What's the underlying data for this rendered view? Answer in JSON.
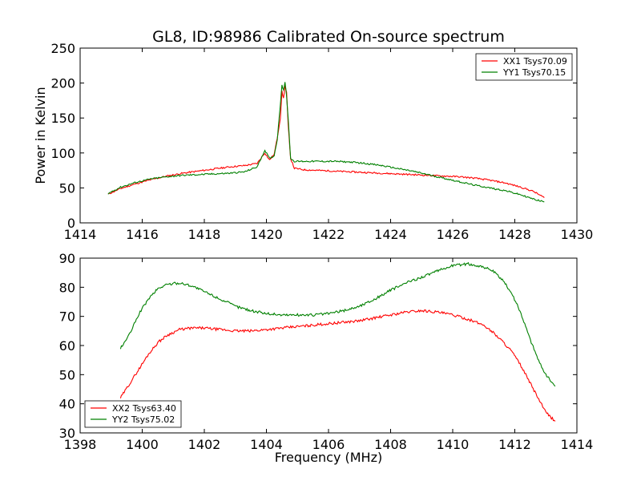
{
  "title": "GL8, ID:98986 Calibrated On-source spectrum",
  "ylabel": "Power in Kelvin",
  "xlabel": "Frequency (MHz)",
  "chart_data": [
    {
      "type": "line",
      "xlim": [
        1414,
        1430
      ],
      "ylim": [
        0,
        250
      ],
      "xticks": [
        "1414",
        "1416",
        "1418",
        "1420",
        "1422",
        "1424",
        "1426",
        "1428",
        "1430"
      ],
      "yticks": [
        "0",
        "50",
        "100",
        "150",
        "200",
        "250"
      ],
      "legend_position": "top-right",
      "series": [
        {
          "name": "XX1 Tsys70.09",
          "color": "#ff0000",
          "x": [
            1414.9,
            1415.3,
            1415.8,
            1416.3,
            1416.8,
            1417.3,
            1417.8,
            1418.3,
            1418.8,
            1419.3,
            1419.7,
            1419.95,
            1420.1,
            1420.25,
            1420.35,
            1420.45,
            1420.5,
            1420.55,
            1420.6,
            1420.65,
            1420.7,
            1420.78,
            1420.9,
            1421.2,
            1421.7,
            1422.2,
            1422.7,
            1423.2,
            1423.7,
            1424.2,
            1424.7,
            1425.2,
            1425.7,
            1426.2,
            1426.7,
            1427.2,
            1427.7,
            1428.2,
            1428.6,
            1428.95
          ],
          "y": [
            41,
            49,
            56,
            62,
            67,
            71,
            74,
            77,
            80,
            82,
            85,
            100,
            90,
            98,
            122,
            150,
            188,
            178,
            196,
            186,
            140,
            92,
            78,
            76,
            75,
            74,
            73,
            72,
            71,
            70,
            69,
            68,
            67,
            66,
            64,
            61,
            57,
            51,
            45,
            36
          ]
        },
        {
          "name": "YY1 Tsys70.15",
          "color": "#008000",
          "x": [
            1414.9,
            1415.3,
            1415.8,
            1416.3,
            1416.8,
            1417.3,
            1417.8,
            1418.3,
            1418.8,
            1419.3,
            1419.7,
            1419.95,
            1420.1,
            1420.25,
            1420.35,
            1420.45,
            1420.5,
            1420.55,
            1420.6,
            1420.65,
            1420.7,
            1420.78,
            1420.9,
            1421.2,
            1421.7,
            1422.2,
            1422.7,
            1423.2,
            1423.7,
            1424.2,
            1424.7,
            1425.2,
            1425.7,
            1426.2,
            1426.7,
            1427.2,
            1427.7,
            1428.2,
            1428.6,
            1428.95
          ],
          "y": [
            42,
            51,
            58,
            63,
            66,
            68,
            69,
            70,
            71,
            73,
            80,
            104,
            92,
            96,
            120,
            170,
            198,
            190,
            202,
            180,
            150,
            92,
            88,
            88,
            88,
            88,
            87,
            85,
            82,
            78,
            74,
            69,
            64,
            59,
            54,
            50,
            46,
            40,
            34,
            30
          ]
        }
      ]
    },
    {
      "type": "line",
      "xlim": [
        1398,
        1414
      ],
      "ylim": [
        30,
        90
      ],
      "xticks": [
        "1398",
        "1400",
        "1402",
        "1404",
        "1406",
        "1408",
        "1410",
        "1412",
        "1414"
      ],
      "yticks": [
        "30",
        "40",
        "50",
        "60",
        "70",
        "80",
        "90"
      ],
      "legend_position": "bottom-left",
      "series": [
        {
          "name": "XX2 Tsys63.40",
          "color": "#ff0000",
          "x": [
            1399.3,
            1399.6,
            1399.9,
            1400.2,
            1400.5,
            1400.8,
            1401.2,
            1401.6,
            1402.0,
            1402.5,
            1403.0,
            1403.5,
            1404.0,
            1404.5,
            1405.0,
            1405.5,
            1406.0,
            1406.5,
            1407.0,
            1407.5,
            1408.0,
            1408.5,
            1409.0,
            1409.5,
            1410.0,
            1410.5,
            1411.0,
            1411.3,
            1411.6,
            1411.9,
            1412.2,
            1412.5,
            1412.8,
            1413.0,
            1413.3
          ],
          "y": [
            42,
            47,
            52,
            57,
            61,
            63.5,
            65.5,
            66,
            66,
            65.5,
            65,
            65,
            65.5,
            66,
            66.5,
            67,
            67.5,
            68,
            68.5,
            69.5,
            70.5,
            71.5,
            72,
            71.5,
            70.5,
            69,
            67,
            64.5,
            61.5,
            58,
            53,
            47,
            41,
            37,
            34
          ]
        },
        {
          "name": "YY2 Tsys75.02",
          "color": "#008000",
          "x": [
            1399.3,
            1399.6,
            1399.9,
            1400.2,
            1400.5,
            1400.8,
            1401.2,
            1401.6,
            1402.0,
            1402.5,
            1403.0,
            1403.5,
            1404.0,
            1404.5,
            1405.0,
            1405.5,
            1406.0,
            1406.5,
            1407.0,
            1407.5,
            1408.0,
            1408.5,
            1409.0,
            1409.5,
            1410.0,
            1410.5,
            1411.0,
            1411.3,
            1411.6,
            1411.9,
            1412.2,
            1412.5,
            1412.8,
            1413.0,
            1413.3
          ],
          "y": [
            59,
            64,
            71,
            76,
            79.5,
            81,
            81.5,
            80.5,
            78.5,
            76,
            73.5,
            72,
            71,
            70.5,
            70.5,
            70.5,
            71,
            72,
            73.5,
            76,
            79,
            81.5,
            83.5,
            85.5,
            87.5,
            88,
            87,
            85.5,
            82.5,
            78,
            71,
            62,
            54,
            50,
            46
          ]
        }
      ]
    }
  ]
}
